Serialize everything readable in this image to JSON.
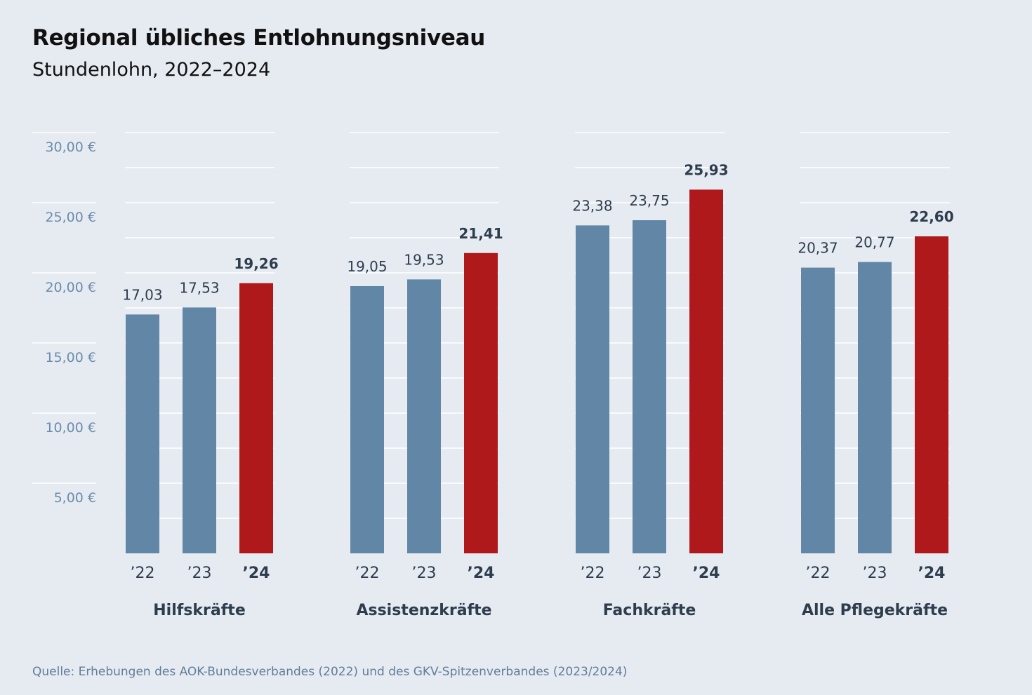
{
  "title": "Regional übliches Entlohnungsniveau",
  "subtitle": "Stundenlohn, 2022–2024",
  "source": "Quelle: Erhebungen des AOK-Bundesverbandes (2022) und des GKV-Spitzenverbandes (2023/2024)",
  "colors": {
    "background": "#e6ebf2",
    "bar_previous": "#6186a6",
    "bar_latest": "#b0191b",
    "grid": "#ffffff",
    "axis_text": "#6b8cab",
    "label_text": "#2e3d4d"
  },
  "chart_data": {
    "type": "bar",
    "x_tick_labels": [
      "’22",
      "’23",
      "’24"
    ],
    "y_tick_labels": [
      "5,00 €",
      "10,00 €",
      "15,00 €",
      "20,00 €",
      "25,00 €",
      "30,00 €"
    ],
    "y_ticks": [
      5,
      10,
      15,
      20,
      25,
      30
    ],
    "ylim": [
      0,
      30
    ],
    "grid": true,
    "legend": "none",
    "groups": [
      {
        "name": "Hilfskräfte",
        "values": [
          17.03,
          17.53,
          19.26
        ],
        "labels": [
          "17,03",
          "17,53",
          "19,26"
        ]
      },
      {
        "name": "Assistenzkräfte",
        "values": [
          19.05,
          19.53,
          21.41
        ],
        "labels": [
          "19,05",
          "19,53",
          "21,41"
        ]
      },
      {
        "name": "Fachkräfte",
        "values": [
          23.38,
          23.75,
          25.93
        ],
        "labels": [
          "23,38",
          "23,75",
          "25,93"
        ]
      },
      {
        "name": "Alle Pflegekräfte",
        "values": [
          20.37,
          20.77,
          22.6
        ],
        "labels": [
          "20,37",
          "20,77",
          "22,60"
        ]
      }
    ]
  }
}
